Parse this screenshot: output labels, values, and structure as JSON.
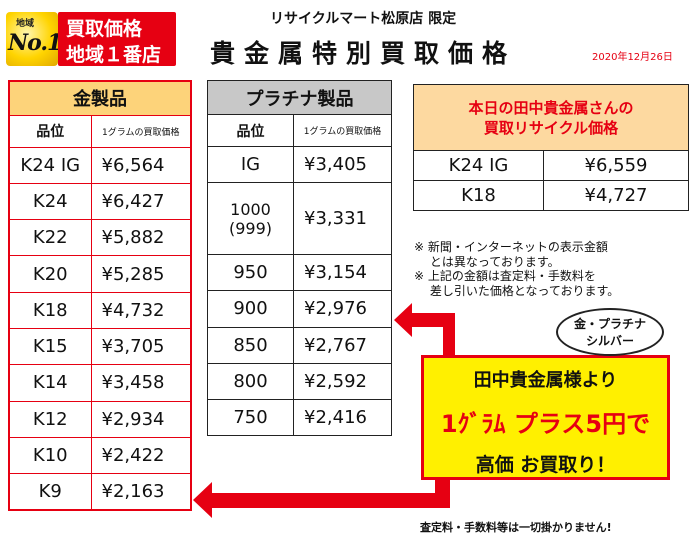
{
  "badge": {
    "region": "地域",
    "no1": "No.1",
    "line1": "買取価格",
    "line2": "地域１番店"
  },
  "header": {
    "store": "リサイクルマート松原店 限定",
    "title": "貴金属特別買取価格",
    "date": "2020年12月26日"
  },
  "gold": {
    "title": "金製品",
    "col_grade": "品位",
    "col_price": "1グラムの買取価格",
    "rows": [
      {
        "grade": "K24 IG",
        "price": "¥6,564"
      },
      {
        "grade": "K24",
        "price": "¥6,427"
      },
      {
        "grade": "K22",
        "price": "¥5,882"
      },
      {
        "grade": "K20",
        "price": "¥5,285"
      },
      {
        "grade": "K18",
        "price": "¥4,732"
      },
      {
        "grade": "K15",
        "price": "¥3,705"
      },
      {
        "grade": "K14",
        "price": "¥3,458"
      },
      {
        "grade": "K12",
        "price": "¥2,934"
      },
      {
        "grade": "K10",
        "price": "¥2,422"
      },
      {
        "grade": "K9",
        "price": "¥2,163"
      }
    ]
  },
  "platinum": {
    "title": "プラチナ製品",
    "col_grade": "品位",
    "col_price": "1グラムの買取価格",
    "rows": [
      {
        "grade": "IG",
        "price": "¥3,405"
      },
      {
        "grade": "1000\n(999)",
        "price": "¥3,331"
      },
      {
        "grade": "950",
        "price": "¥3,154"
      },
      {
        "grade": "900",
        "price": "¥2,976"
      },
      {
        "grade": "850",
        "price": "¥2,767"
      },
      {
        "grade": "800",
        "price": "¥2,592"
      },
      {
        "grade": "750",
        "price": "¥2,416"
      }
    ]
  },
  "tanaka": {
    "title_line1": "本日の田中貴金属さんの",
    "title_line2": "買取リサイクル価格",
    "rows": [
      {
        "grade": "K24 IG",
        "price": "¥6,559"
      },
      {
        "grade": "K18",
        "price": "¥4,727"
      }
    ]
  },
  "notes": [
    "※ 新聞・インターネットの表示金額",
    "　 とは異なっております。",
    "※ 上記の金額は査定料・手数料を",
    "　 差し引いた価格となっております。"
  ],
  "bubble": {
    "line1": "金・プラチナ",
    "line2": "シルバー"
  },
  "promo": {
    "line1": "田中貴金属様より",
    "line2": "1ｸﾞﾗﾑ プラス5円で",
    "line3": "高価 お買取り！"
  },
  "footnote": "査定料・手数料等は一切掛かりません!",
  "colors": {
    "accent_red": "#e60012",
    "gold_header": "#fdd37a",
    "platinum_header": "#c8c8c8",
    "promo_yellow": "#fff000"
  }
}
